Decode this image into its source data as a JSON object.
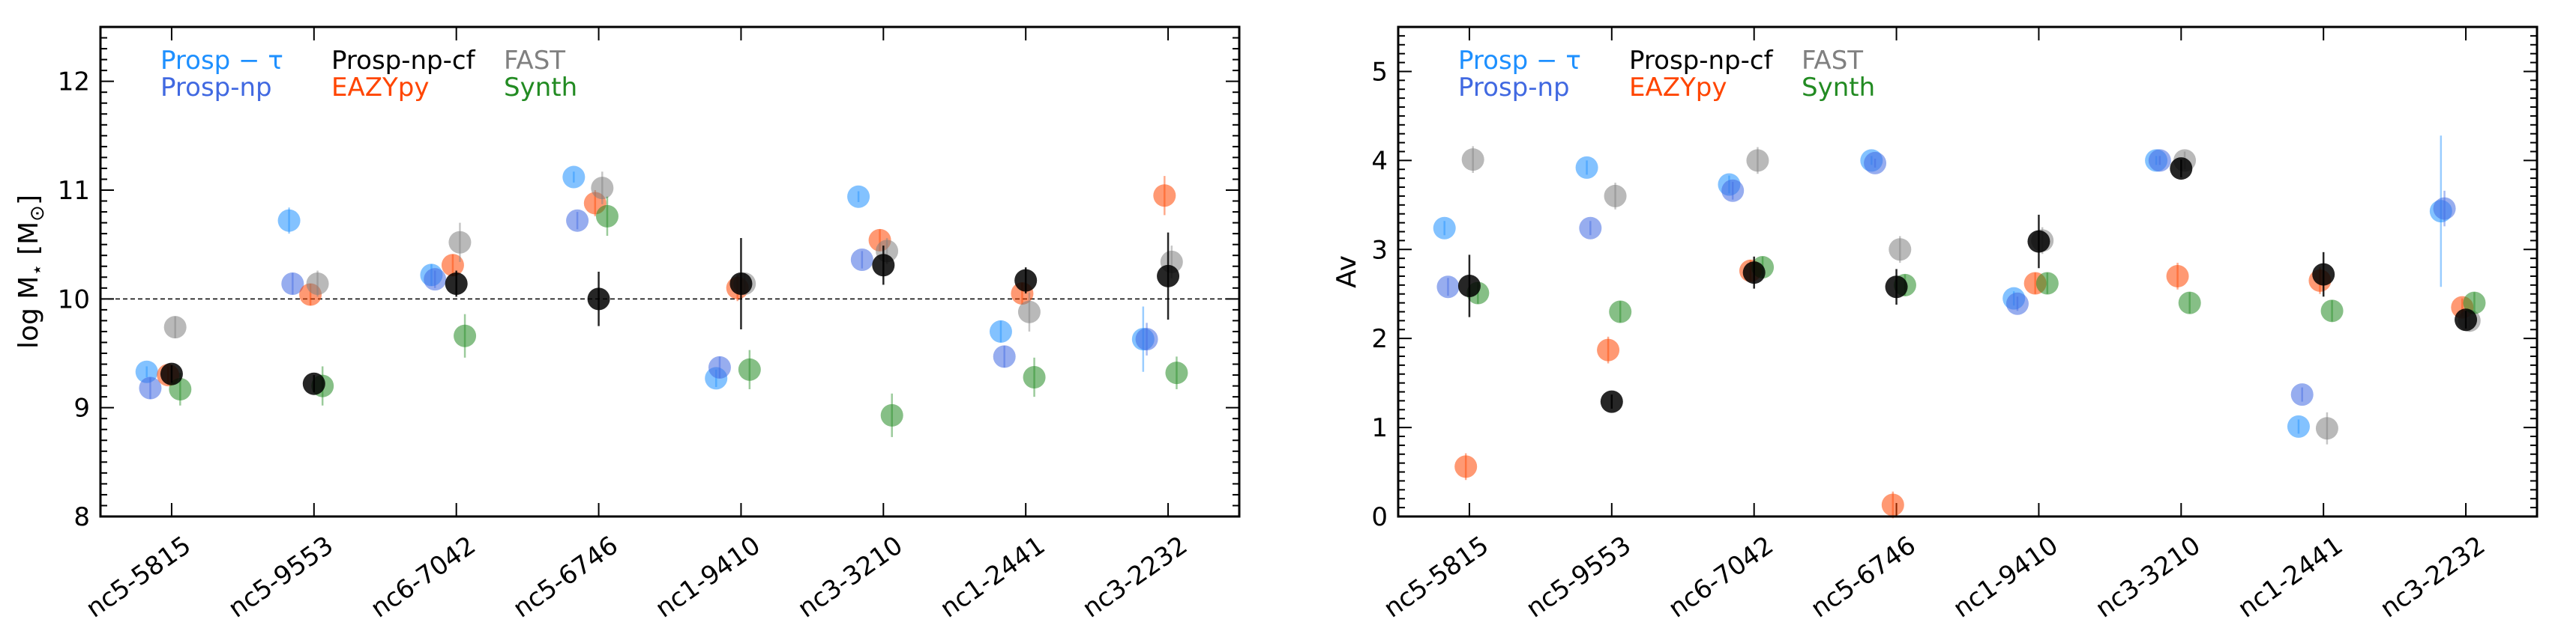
{
  "chart_data": [
    {
      "type": "scatter",
      "ylabel": "log M⋆ [M⊙]",
      "ylabel_main": "log M",
      "ylabel_star": "⋆",
      "ylabel_unit": " [M",
      "ylabel_sun": "⊙",
      "ylabel_close": "]",
      "ylim": [
        8,
        12.5
      ],
      "yticks": [
        8,
        9,
        10,
        11,
        12
      ],
      "reference_line": 10,
      "categories": [
        "nc5-5815",
        "nc5-9553",
        "nc6-7042",
        "nc5-6746",
        "nc1-9410",
        "nc3-3210",
        "nc1-2441",
        "nc3-2232"
      ],
      "legend_placement": "top-left",
      "series": [
        {
          "name": "Prosp − τ",
          "color": "#1e90ff",
          "offset": -0.35,
          "values": [
            9.33,
            10.72,
            10.22,
            11.12,
            9.27,
            10.94,
            9.7,
            9.63
          ],
          "err": [
            0.05,
            0.12,
            0.1,
            0.05,
            0.08,
            0.05,
            0.1,
            0.3
          ]
        },
        {
          "name": "Prosp-np",
          "color": "#4169e1",
          "offset": -0.3,
          "values": [
            9.18,
            10.14,
            10.18,
            10.72,
            9.37,
            10.36,
            9.47,
            9.63
          ],
          "err": [
            0.1,
            0.1,
            0.08,
            0.08,
            0.1,
            0.08,
            0.1,
            0.15
          ]
        },
        {
          "name": "Prosp-np-cf",
          "color": "#000000",
          "offset": 0.0,
          "values": [
            9.31,
            9.22,
            10.14,
            10.0,
            10.14,
            10.31,
            10.17,
            10.21
          ],
          "err": [
            0.08,
            0.08,
            0.12,
            0.25,
            0.42,
            0.18,
            0.12,
            0.4
          ]
        },
        {
          "name": "EAZYpy",
          "color": "#ff4500",
          "offset": -0.05,
          "values": [
            9.3,
            10.04,
            10.31,
            10.88,
            10.1,
            10.54,
            10.05,
            10.95
          ],
          "err": [
            0.08,
            0.1,
            0.1,
            0.12,
            0.12,
            0.1,
            0.1,
            0.18
          ]
        },
        {
          "name": "FAST",
          "color": "#808080",
          "offset": 0.05,
          "values": [
            9.74,
            10.14,
            10.52,
            11.02,
            10.14,
            10.44,
            9.88,
            10.34
          ],
          "err": [
            0.1,
            0.12,
            0.18,
            0.15,
            0.1,
            0.12,
            0.18,
            0.15
          ]
        },
        {
          "name": "Synth",
          "color": "#228b22",
          "offset": 0.12,
          "values": [
            9.17,
            9.2,
            9.66,
            10.76,
            9.35,
            8.93,
            9.28,
            9.32
          ],
          "err": [
            0.15,
            0.18,
            0.2,
            0.18,
            0.18,
            0.2,
            0.18,
            0.15
          ]
        }
      ]
    },
    {
      "type": "scatter",
      "ylabel": "Av",
      "ylim": [
        0,
        5.5
      ],
      "yticks": [
        0,
        1,
        2,
        3,
        4,
        5
      ],
      "categories": [
        "nc5-5815",
        "nc5-9553",
        "nc6-7042",
        "nc5-6746",
        "nc1-9410",
        "nc3-3210",
        "nc1-2441",
        "nc3-2232"
      ],
      "legend_placement": "top-left",
      "series": [
        {
          "name": "Prosp − τ",
          "color": "#1e90ff",
          "offset": -0.35,
          "values": [
            3.24,
            3.92,
            3.73,
            4.0,
            2.45,
            4.0,
            1.01,
            3.43
          ],
          "err": [
            0.08,
            0.08,
            0.1,
            0.05,
            0.08,
            0.05,
            0.08,
            0.85
          ]
        },
        {
          "name": "Prosp-np",
          "color": "#4169e1",
          "offset": -0.3,
          "values": [
            2.58,
            3.24,
            3.66,
            3.97,
            2.39,
            4.0,
            1.37,
            3.46
          ],
          "err": [
            0.1,
            0.08,
            0.1,
            0.05,
            0.08,
            0.05,
            0.08,
            0.2
          ]
        },
        {
          "name": "Prosp-np-cf",
          "color": "#000000",
          "offset": 0.0,
          "values": [
            2.59,
            1.29,
            2.74,
            2.58,
            3.09,
            3.91,
            2.72,
            2.21
          ],
          "err": [
            0.35,
            0.08,
            0.18,
            0.2,
            0.3,
            0.1,
            0.25,
            0.1
          ]
        },
        {
          "name": "EAZYpy",
          "color": "#ff4500",
          "offset": -0.05,
          "values": [
            0.56,
            1.87,
            2.76,
            0.13,
            2.62,
            2.7,
            2.65,
            2.35
          ],
          "err": [
            0.15,
            0.15,
            0.12,
            0.15,
            0.12,
            0.15,
            0.15,
            0.1
          ]
        },
        {
          "name": "FAST",
          "color": "#808080",
          "offset": 0.05,
          "values": [
            4.01,
            3.6,
            4.0,
            3.0,
            3.1,
            4.0,
            0.99,
            2.2
          ],
          "err": [
            0.15,
            0.15,
            0.15,
            0.15,
            0.15,
            0.1,
            0.18,
            0.12
          ]
        },
        {
          "name": "Synth",
          "color": "#228b22",
          "offset": 0.12,
          "values": [
            2.51,
            2.3,
            2.8,
            2.6,
            2.62,
            2.4,
            2.31,
            2.4
          ],
          "err": [
            0.12,
            0.12,
            0.12,
            0.12,
            0.12,
            0.12,
            0.12,
            0.12
          ]
        }
      ]
    }
  ],
  "legend_rows": [
    [
      "Prosp − τ",
      "Prosp-np-cf",
      "FAST"
    ],
    [
      "Prosp-np",
      "EAZYpy",
      "Synth"
    ]
  ]
}
